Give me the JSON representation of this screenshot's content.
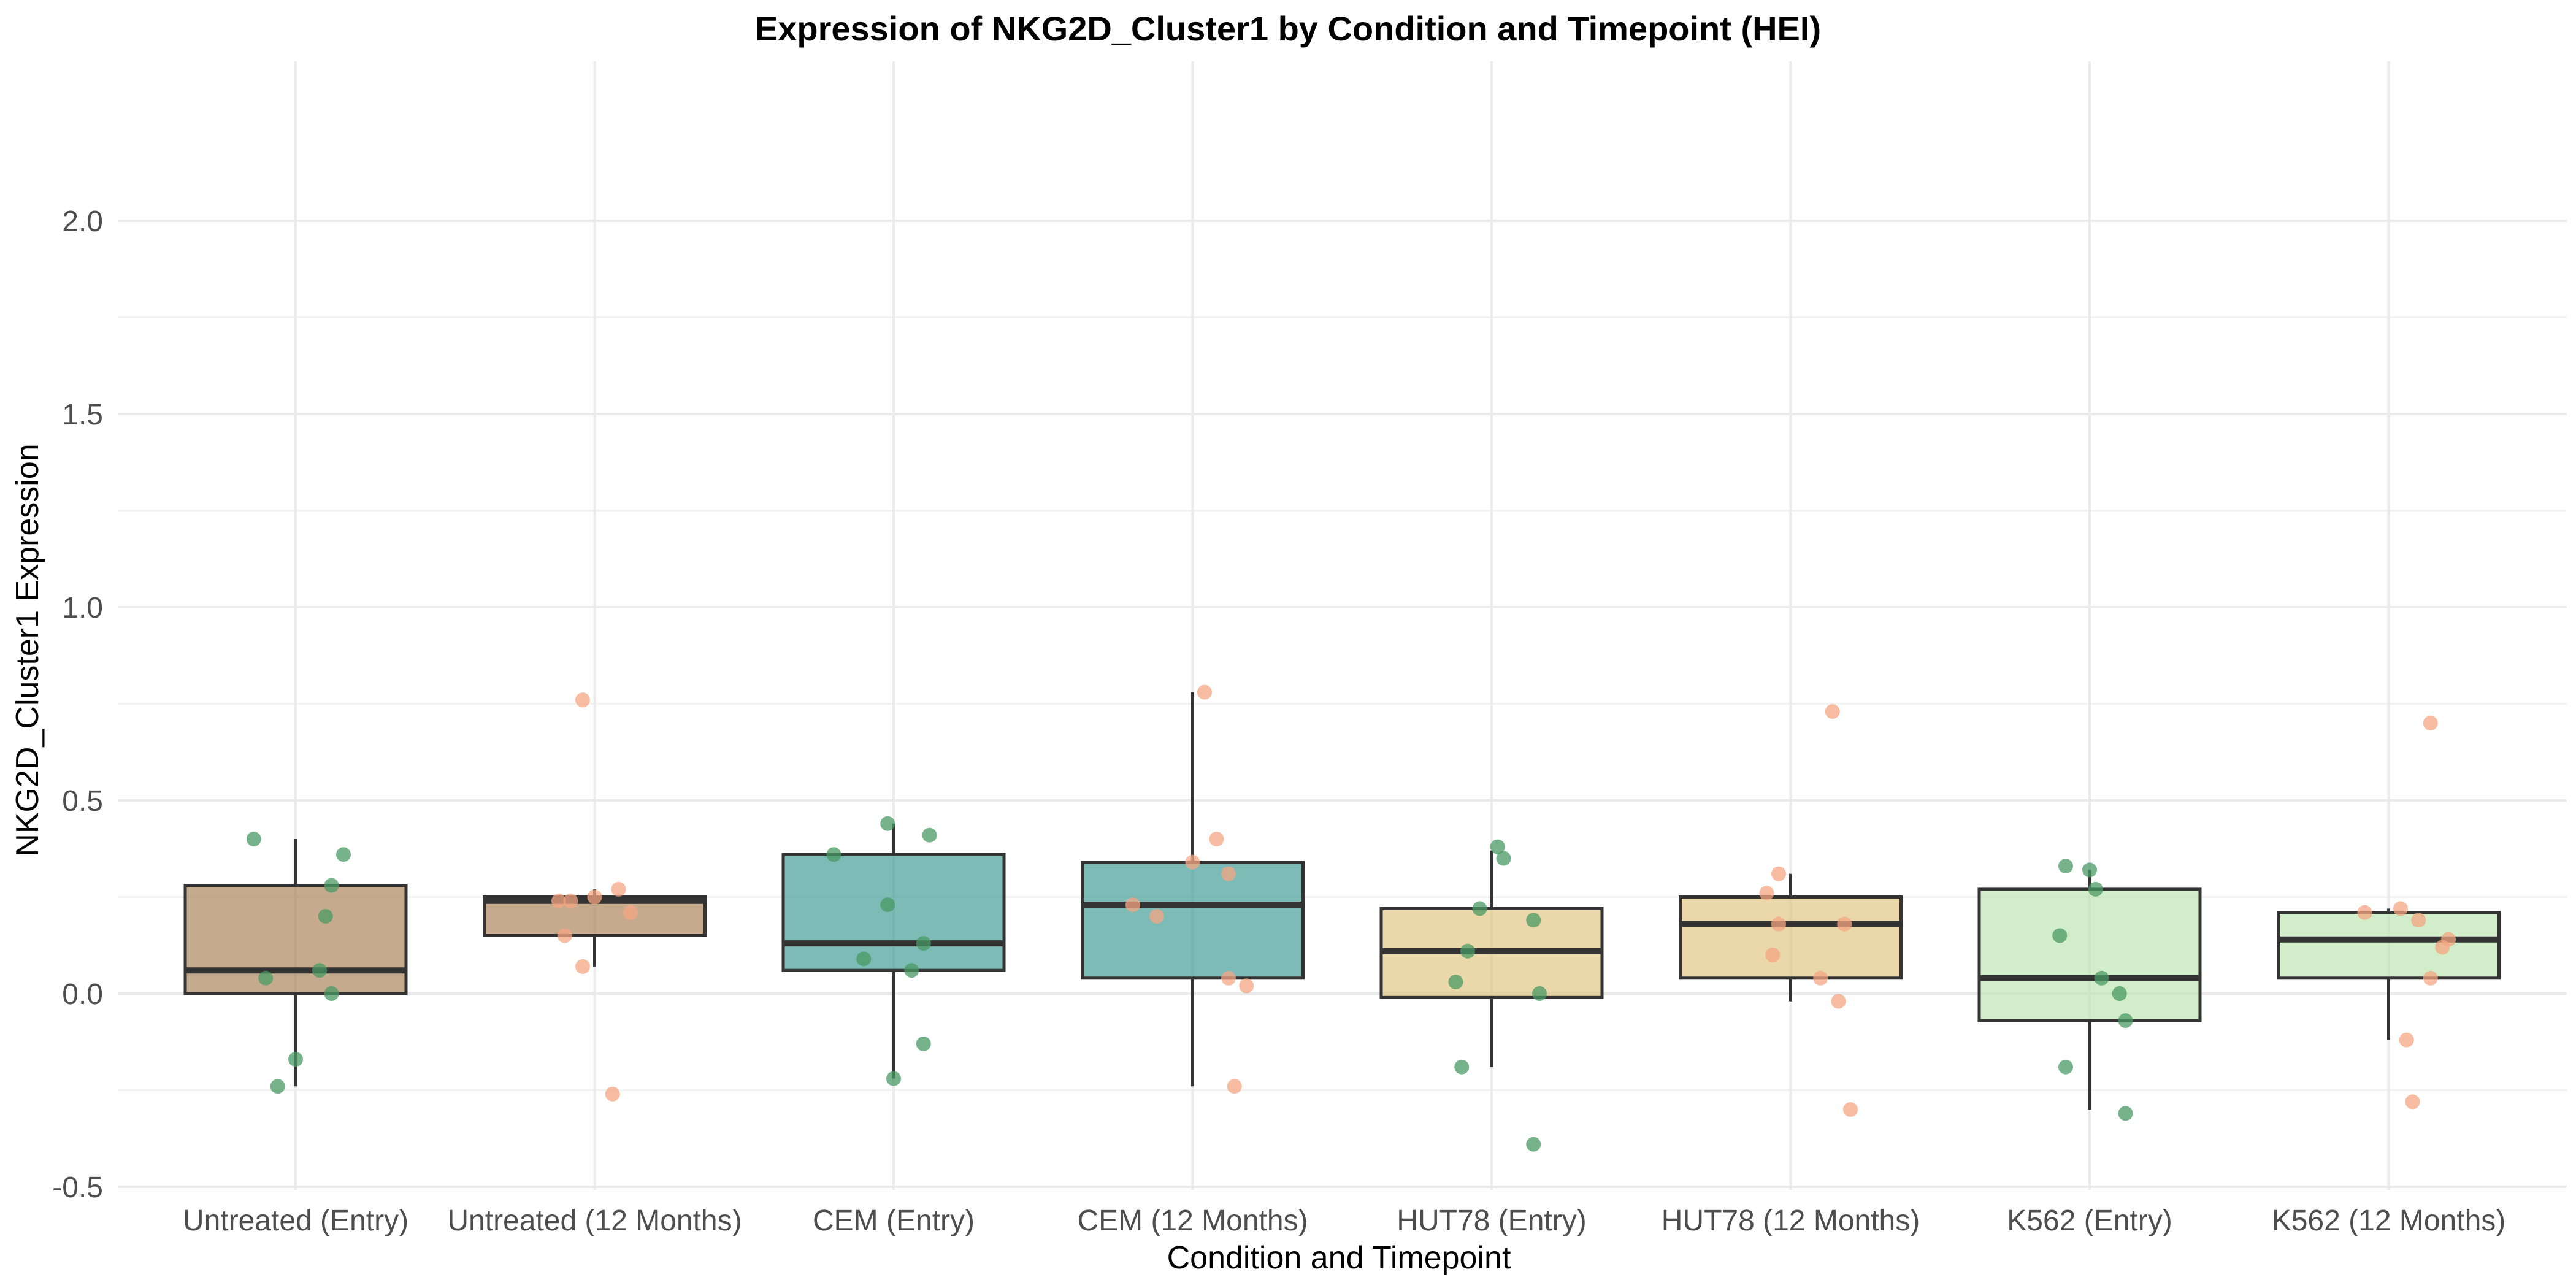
{
  "chart_data": {
    "type": "box",
    "title": "Expression of NKG2D_Cluster1 by Condition and Timepoint (HEI)",
    "xlabel": "Condition and Timepoint",
    "ylabel": "NKG2D_Cluster1 Expression",
    "ylim": [
      -0.5,
      2.2
    ],
    "yticks": [
      -0.5,
      0.0,
      0.5,
      1.0,
      1.5,
      2.0
    ],
    "ytick_labels": [
      "-0.5",
      "0.0",
      "0.5",
      "1.0",
      "1.5",
      "2.0"
    ],
    "grid": true,
    "legend": "none",
    "point_colors": {
      "Entry": "#4a9a63",
      "12 Months": "#f4a582"
    },
    "categories": [
      {
        "label": "Untreated (Entry)",
        "timepoint": "Entry",
        "fill": "#a67c52",
        "q1": 0.0,
        "median": 0.06,
        "q3": 0.28,
        "whisker_low": -0.24,
        "whisker_high": 0.4,
        "points": [
          [
            -0.07,
            0.4
          ],
          [
            -0.05,
            0.04
          ],
          [
            0.08,
            0.36
          ],
          [
            0.06,
            0.28
          ],
          [
            0.05,
            0.2
          ],
          [
            0.04,
            0.06
          ],
          [
            0.06,
            0.0
          ],
          [
            0.0,
            -0.17
          ],
          [
            -0.03,
            -0.24
          ]
        ]
      },
      {
        "label": "Untreated (12 Months)",
        "timepoint": "12 Months",
        "fill": "#a67c52",
        "q1": 0.15,
        "median": 0.24,
        "q3": 0.25,
        "whisker_low": 0.07,
        "whisker_high": 0.27,
        "points": [
          [
            -0.02,
            0.76
          ],
          [
            -0.06,
            0.24
          ],
          [
            -0.04,
            0.24
          ],
          [
            0.0,
            0.25
          ],
          [
            0.04,
            0.27
          ],
          [
            0.06,
            0.21
          ],
          [
            -0.05,
            0.15
          ],
          [
            -0.02,
            0.07
          ],
          [
            0.03,
            -0.26
          ]
        ]
      },
      {
        "label": "CEM (Entry)",
        "timepoint": "Entry",
        "fill": "#35978f",
        "q1": 0.06,
        "median": 0.13,
        "q3": 0.36,
        "whisker_low": -0.22,
        "whisker_high": 0.44,
        "points": [
          [
            -0.01,
            0.44
          ],
          [
            0.06,
            0.41
          ],
          [
            -0.1,
            0.36
          ],
          [
            -0.01,
            0.23
          ],
          [
            0.05,
            0.13
          ],
          [
            -0.05,
            0.09
          ],
          [
            0.03,
            0.06
          ],
          [
            0.05,
            -0.13
          ],
          [
            0.0,
            -0.22
          ]
        ]
      },
      {
        "label": "CEM (12 Months)",
        "timepoint": "12 Months",
        "fill": "#35978f",
        "q1": 0.04,
        "median": 0.23,
        "q3": 0.34,
        "whisker_low": -0.24,
        "whisker_high": 0.78,
        "points": [
          [
            0.02,
            0.78
          ],
          [
            0.04,
            0.4
          ],
          [
            0.0,
            0.34
          ],
          [
            0.06,
            0.31
          ],
          [
            -0.1,
            0.23
          ],
          [
            -0.06,
            0.2
          ],
          [
            0.06,
            0.04
          ],
          [
            0.09,
            0.02
          ],
          [
            0.07,
            -0.24
          ]
        ]
      },
      {
        "label": "HUT78 (Entry)",
        "timepoint": "Entry",
        "fill": "#dfc27d",
        "q1": -0.01,
        "median": 0.11,
        "q3": 0.22,
        "whisker_low": -0.19,
        "whisker_high": 0.37,
        "points": [
          [
            0.01,
            0.38
          ],
          [
            0.02,
            0.35
          ],
          [
            -0.02,
            0.22
          ],
          [
            0.07,
            0.19
          ],
          [
            -0.04,
            0.11
          ],
          [
            -0.06,
            0.03
          ],
          [
            0.08,
            0.0
          ],
          [
            -0.05,
            -0.19
          ],
          [
            0.07,
            -0.39
          ]
        ]
      },
      {
        "label": "HUT78 (12 Months)",
        "timepoint": "12 Months",
        "fill": "#dfc27d",
        "q1": 0.04,
        "median": 0.18,
        "q3": 0.25,
        "whisker_low": -0.02,
        "whisker_high": 0.31,
        "points": [
          [
            0.07,
            0.73
          ],
          [
            -0.02,
            0.31
          ],
          [
            -0.04,
            0.26
          ],
          [
            -0.02,
            0.18
          ],
          [
            0.09,
            0.18
          ],
          [
            -0.03,
            0.1
          ],
          [
            0.05,
            0.04
          ],
          [
            0.08,
            -0.02
          ],
          [
            0.1,
            -0.3
          ]
        ]
      },
      {
        "label": "K562 (Entry)",
        "timepoint": "Entry",
        "fill": "#b8e3ae",
        "q1": -0.07,
        "median": 0.04,
        "q3": 0.27,
        "whisker_low": -0.3,
        "whisker_high": 0.32,
        "points": [
          [
            -0.04,
            0.33
          ],
          [
            0.0,
            0.32
          ],
          [
            0.01,
            0.27
          ],
          [
            -0.05,
            0.15
          ],
          [
            0.02,
            0.04
          ],
          [
            0.05,
            0.0
          ],
          [
            0.06,
            -0.07
          ],
          [
            -0.04,
            -0.19
          ],
          [
            0.06,
            -0.31
          ]
        ]
      },
      {
        "label": "K562 (12 Months)",
        "timepoint": "12 Months",
        "fill": "#b8e3ae",
        "q1": 0.04,
        "median": 0.14,
        "q3": 0.21,
        "whisker_low": -0.12,
        "whisker_high": 0.22,
        "points": [
          [
            0.07,
            0.7
          ],
          [
            0.02,
            0.22
          ],
          [
            -0.04,
            0.21
          ],
          [
            0.05,
            0.19
          ],
          [
            0.1,
            0.14
          ],
          [
            0.09,
            0.12
          ],
          [
            0.07,
            0.04
          ],
          [
            0.03,
            -0.12
          ],
          [
            0.04,
            -0.28
          ]
        ]
      }
    ]
  }
}
